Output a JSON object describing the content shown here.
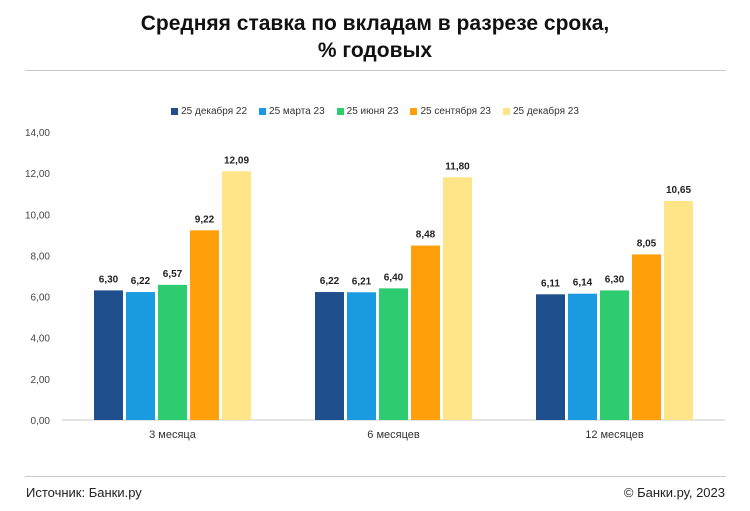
{
  "title_line1": "Средняя ставка по вкладам в разрезе срока,",
  "title_line2": "% годовых",
  "source_text": "Источник: Банки.ру",
  "copyright_text": "© Банки.ру, 2023",
  "chart_data": {
    "type": "bar",
    "title": "Средняя ставка по вкладам в разрезе срока, % годовых",
    "xlabel": "",
    "ylabel": "",
    "ylim": [
      0,
      14
    ],
    "yticks": [
      "0,00",
      "2,00",
      "4,00",
      "6,00",
      "8,00",
      "10,00",
      "12,00",
      "14,00"
    ],
    "grid": false,
    "legend_position": "top",
    "categories": [
      "3 месяца",
      "6 месяцев",
      "12 месяцев"
    ],
    "series": [
      {
        "name": "25 декабря 22",
        "color": "#1f4e8c",
        "values": [
          6.3,
          6.22,
          6.11
        ],
        "labels": [
          "6,30",
          "6,22",
          "6,11"
        ]
      },
      {
        "name": "25 марта 23",
        "color": "#1a9ae0",
        "values": [
          6.22,
          6.21,
          6.14
        ],
        "labels": [
          "6,22",
          "6,21",
          "6,14"
        ]
      },
      {
        "name": "25 июня 23",
        "color": "#2ecc71",
        "values": [
          6.57,
          6.4,
          6.3
        ],
        "labels": [
          "6,57",
          "6,40",
          "6,30"
        ]
      },
      {
        "name": "25 сентября 23",
        "color": "#ff9f0a",
        "values": [
          9.22,
          8.48,
          8.05
        ],
        "labels": [
          "9,22",
          "8,48",
          "8,05"
        ]
      },
      {
        "name": "25 декабря 23",
        "color": "#ffe588",
        "values": [
          12.09,
          11.8,
          10.65
        ],
        "labels": [
          "12,09",
          "11,80",
          "10,65"
        ]
      }
    ]
  }
}
